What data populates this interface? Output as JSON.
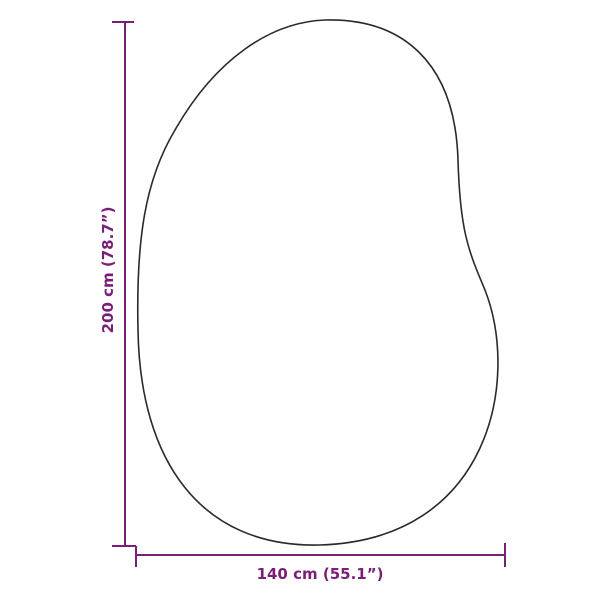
{
  "diagram": {
    "width_label": "140 cm (55.1”)",
    "height_label": "200 cm (78.7”)",
    "dimension_color": "#7a1f78",
    "outline_color": "#2a2a2a"
  }
}
